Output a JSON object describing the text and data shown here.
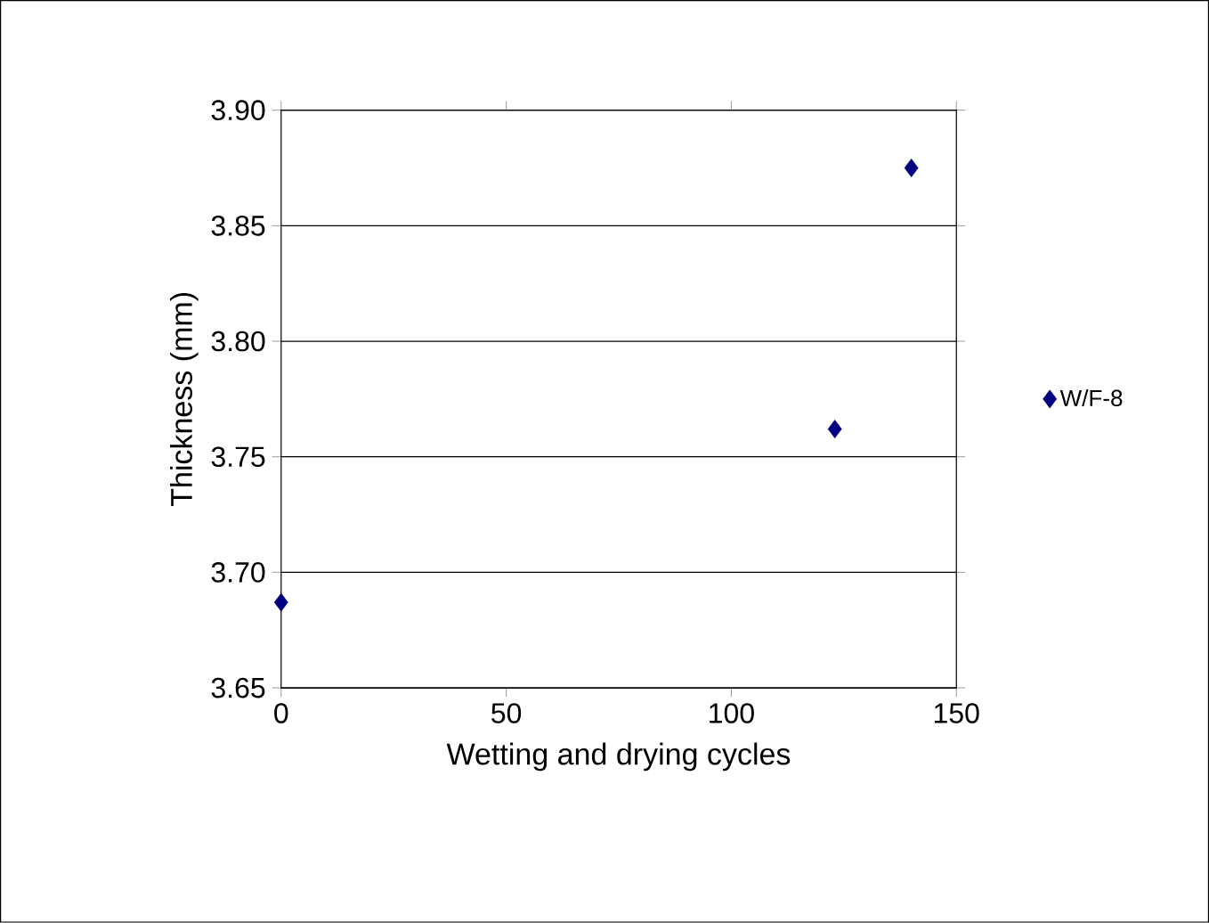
{
  "chart_data": {
    "type": "scatter",
    "xlabel": "Wetting and drying cycles",
    "ylabel": "Thickness (mm)",
    "x": [
      0,
      123,
      140
    ],
    "series": [
      {
        "name": "W/F-8",
        "color": "#000080",
        "values": [
          3.687,
          3.762,
          3.875
        ]
      }
    ],
    "xlim": [
      0,
      150
    ],
    "xticks": [
      0,
      50,
      100,
      150
    ],
    "ylim": [
      3.65,
      3.9
    ],
    "yticks": [
      {
        "value": 3.65,
        "label": "3.65"
      },
      {
        "value": 3.7,
        "label": "3.70"
      },
      {
        "value": 3.75,
        "label": "3.75"
      },
      {
        "value": 3.8,
        "label": "3.80"
      },
      {
        "value": 3.85,
        "label": "3.85"
      },
      {
        "value": 3.9,
        "label": "3.90"
      }
    ],
    "grid": "y",
    "legend": "right",
    "marker": "diamond"
  }
}
